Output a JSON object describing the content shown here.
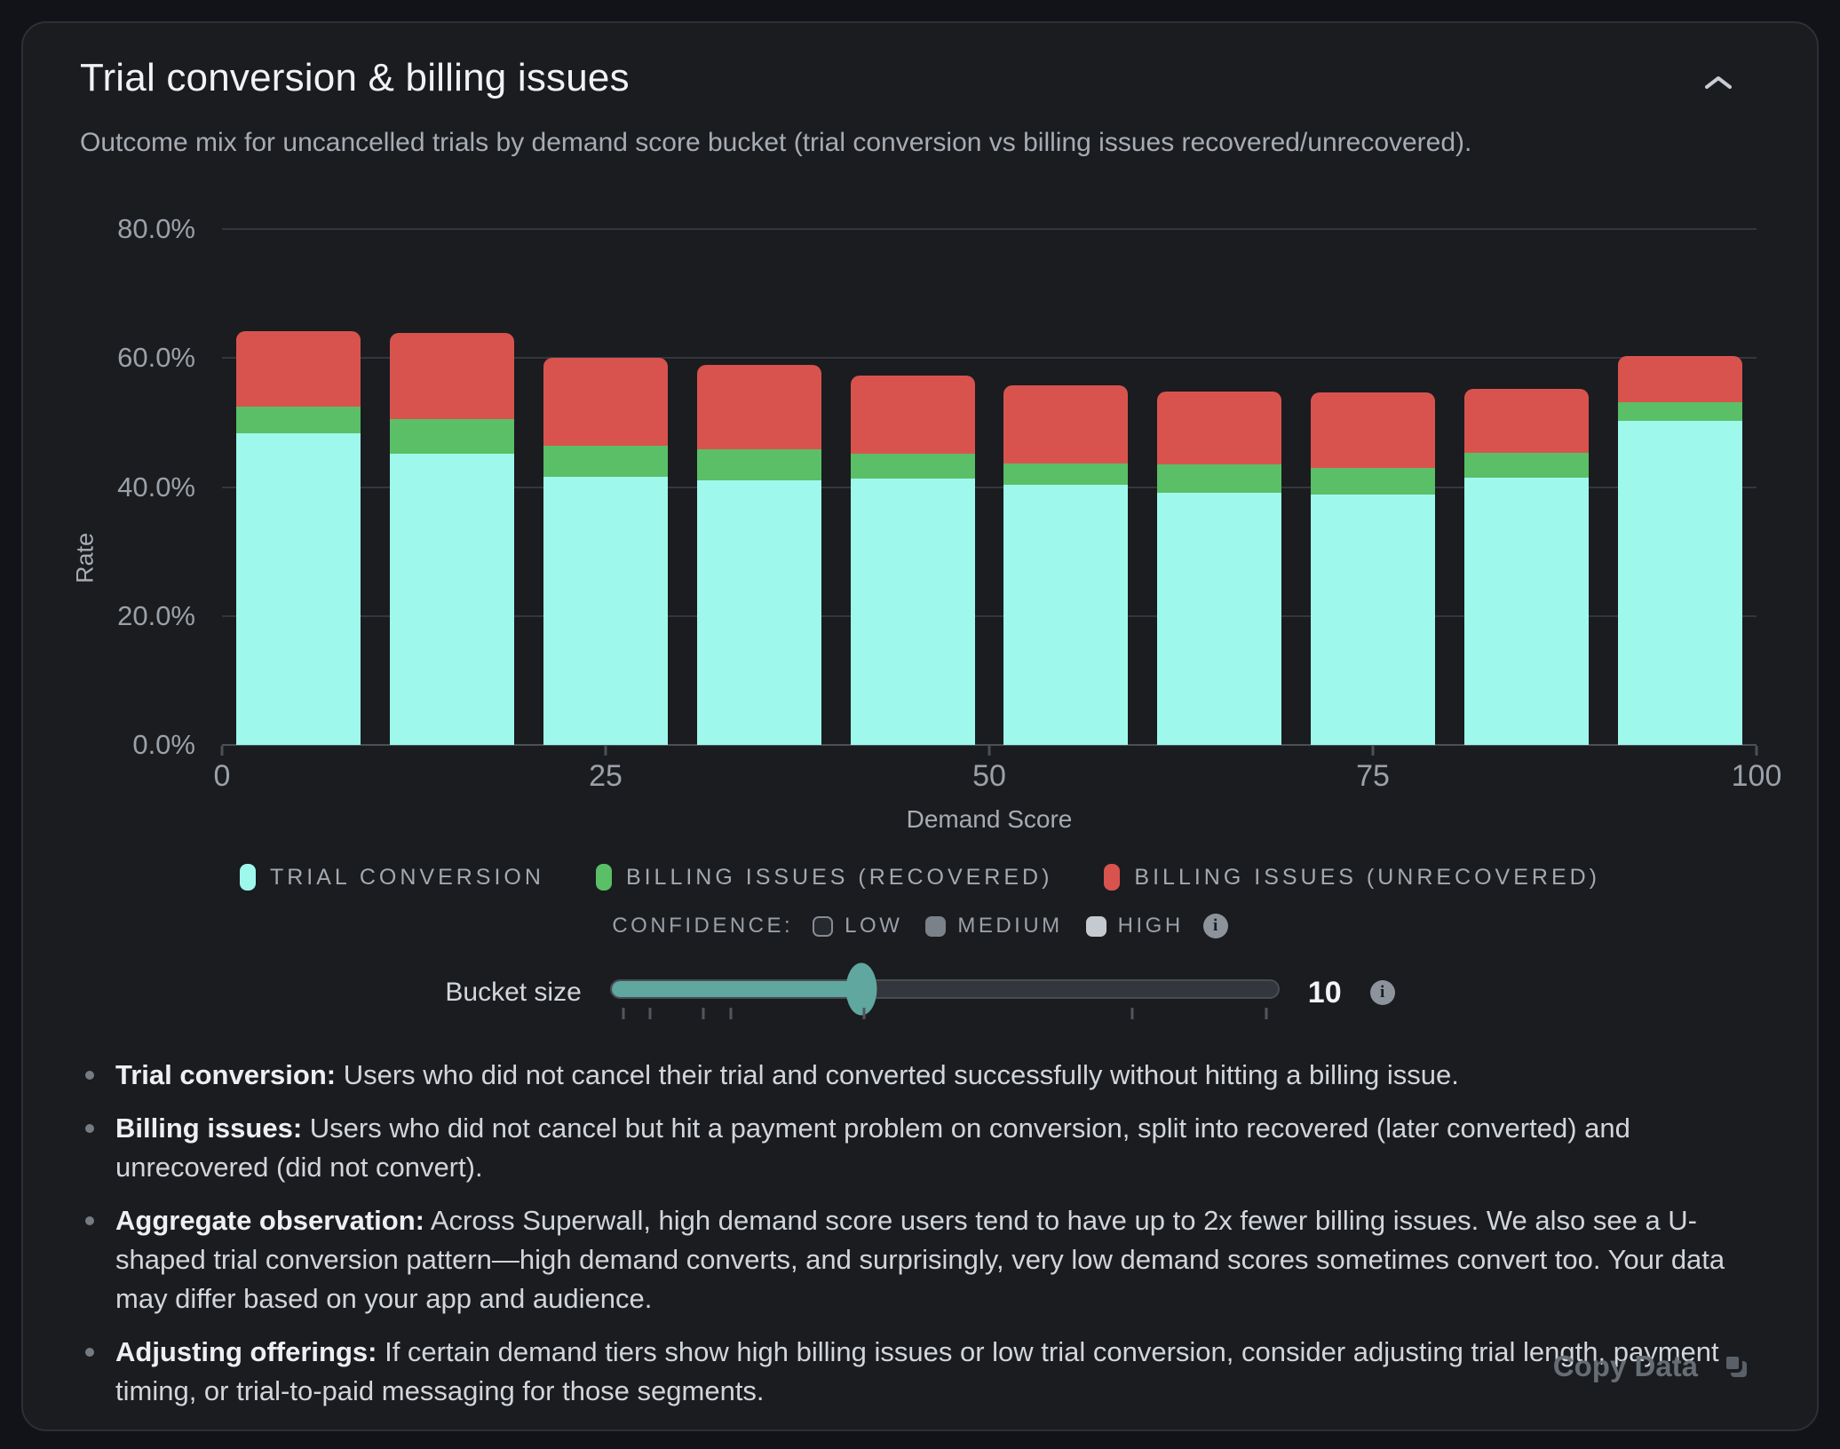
{
  "header": {
    "title": "Trial conversion & billing issues",
    "subtitle": "Outcome mix for uncancelled trials by demand score bucket (trial conversion vs billing issues recovered/unrecovered)."
  },
  "chart_data": {
    "type": "bar",
    "stacked": true,
    "title": "Trial conversion & billing issues",
    "xlabel": "Demand Score",
    "ylabel": "Rate",
    "unit": "%",
    "ylim": [
      0,
      80
    ],
    "y_ticks": [
      0,
      20,
      40,
      60,
      80
    ],
    "y_tick_labels": [
      "0.0%",
      "20.0%",
      "40.0%",
      "60.0%",
      "80.0%"
    ],
    "x_ticks": [
      0,
      25,
      50,
      75,
      100
    ],
    "x_tick_labels": [
      "0",
      "25",
      "50",
      "75",
      "100"
    ],
    "grid": true,
    "legend_position": "bottom",
    "bucket_size": 10,
    "buckets": [
      "0-10",
      "10-20",
      "20-30",
      "30-40",
      "40-50",
      "50-60",
      "60-70",
      "70-80",
      "80-90",
      "90-100"
    ],
    "series": [
      {
        "name": "Trial Conversion",
        "color": "#9ff8ec",
        "values": [
          48.4,
          45.1,
          41.6,
          41.1,
          41.3,
          40.3,
          39.1,
          38.8,
          41.4,
          50.2
        ]
      },
      {
        "name": "Billing Issues (Recovered)",
        "color": "#5abf66",
        "values": [
          4.1,
          5.4,
          4.8,
          4.8,
          3.9,
          3.4,
          4.4,
          4.2,
          3.9,
          3.0
        ]
      },
      {
        "name": "Billing Issues (Unrecovered)",
        "color": "#d9534e",
        "values": [
          11.7,
          13.4,
          13.6,
          13.0,
          12.1,
          12.1,
          11.3,
          11.6,
          9.9,
          7.1
        ]
      }
    ]
  },
  "legend": {
    "items": [
      {
        "label": "TRIAL CONVERSION",
        "color": "#9ff8ec"
      },
      {
        "label": "BILLING ISSUES (RECOVERED)",
        "color": "#5abf66"
      },
      {
        "label": "BILLING ISSUES (UNRECOVERED)",
        "color": "#d9534e"
      }
    ]
  },
  "confidence": {
    "label": "CONFIDENCE:",
    "levels": [
      {
        "label": "LOW",
        "fill": "#26292e",
        "border": "#868c94"
      },
      {
        "label": "MEDIUM",
        "fill": "#7b8189",
        "border": "#7b8189"
      },
      {
        "label": "HIGH",
        "fill": "#c5cad0",
        "border": "#c5cad0"
      }
    ]
  },
  "controls": {
    "bucket_slider": {
      "label": "Bucket size",
      "value": 10,
      "min": 1,
      "max": 25,
      "tick_values": [
        1,
        2,
        4,
        5,
        10,
        20,
        25
      ],
      "accent_color": "#5fa79f"
    }
  },
  "notes": [
    {
      "label": "Trial conversion:",
      "text": " Users who did not cancel their trial and converted successfully without hitting a billing issue."
    },
    {
      "label": "Billing issues:",
      "text": " Users who did not cancel but hit a payment problem on conversion, split into recovered (later converted) and unrecovered (did not convert)."
    },
    {
      "label": "Aggregate observation:",
      "text": " Across Superwall, high demand score users tend to have up to 2x fewer billing issues. We also see a U-shaped trial conversion pattern—high demand converts, and surprisingly, very low demand scores sometimes convert too. Your data may differ based on your app and audience."
    },
    {
      "label": "Adjusting offerings:",
      "text": " If certain demand tiers show high billing issues or low trial conversion, consider adjusting trial length, payment timing, or trial-to-paid messaging for those segments."
    }
  ],
  "footer": {
    "copy_label": "Copy Data"
  }
}
